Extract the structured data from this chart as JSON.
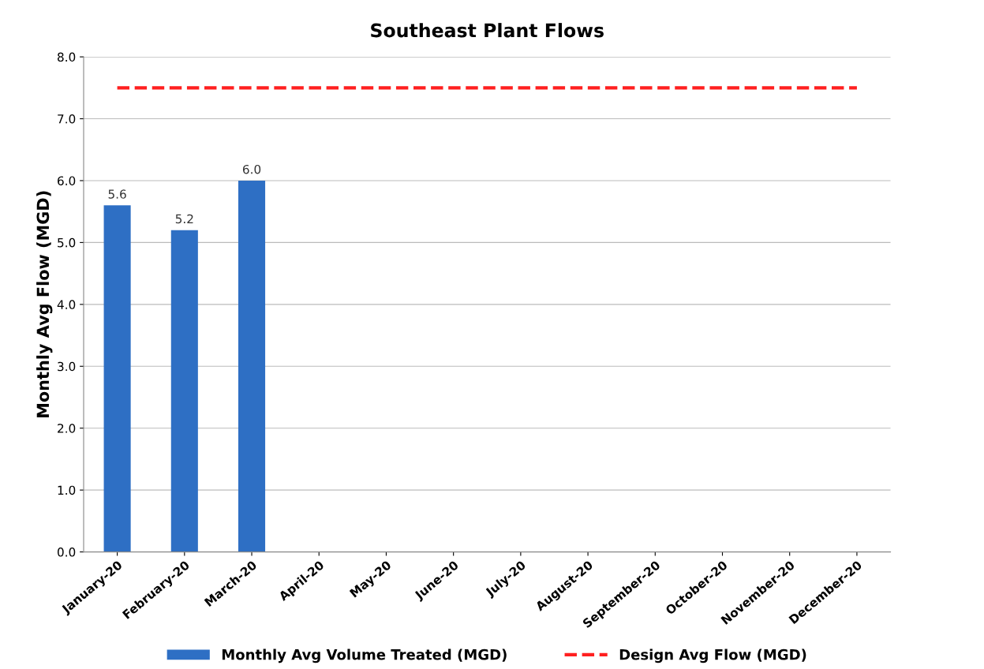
{
  "chart_data": {
    "type": "bar",
    "title": "Southeast Plant Flows",
    "ylabel": "Monthly Avg Flow (MGD)",
    "categories": [
      "January-20",
      "February-20",
      "March-20",
      "April-20",
      "May-20",
      "June-20",
      "July-20",
      "August-20",
      "September-20",
      "October-20",
      "November-20",
      "December-20"
    ],
    "series": [
      {
        "name": "Monthly Avg Volume Treated (MGD)",
        "color": "#2e6fc4",
        "values": [
          5.6,
          5.2,
          6.0,
          null,
          null,
          null,
          null,
          null,
          null,
          null,
          null,
          null
        ],
        "value_labels": [
          "5.6",
          "5.2",
          "6.0",
          null,
          null,
          null,
          null,
          null,
          null,
          null,
          null,
          null
        ]
      },
      {
        "name": "Design Avg Flow (MGD)",
        "type": "line",
        "color": "#ff2020",
        "line_style": "dashed",
        "values": [
          7.5,
          7.5,
          7.5,
          7.5,
          7.5,
          7.5,
          7.5,
          7.5,
          7.5,
          7.5,
          7.5,
          7.5
        ]
      }
    ],
    "ylim": [
      0,
      8
    ],
    "yticks": [
      {
        "value": 0,
        "label": "0.0"
      },
      {
        "value": 1,
        "label": "1.0"
      },
      {
        "value": 2,
        "label": "2.0"
      },
      {
        "value": 3,
        "label": "3.0"
      },
      {
        "value": 4,
        "label": "4.0"
      },
      {
        "value": 5,
        "label": "5.0"
      },
      {
        "value": 6,
        "label": "6.0"
      },
      {
        "value": 7,
        "label": "7.0"
      },
      {
        "value": 8,
        "label": "8.0"
      }
    ],
    "grid": "y",
    "legend": "bottom"
  }
}
